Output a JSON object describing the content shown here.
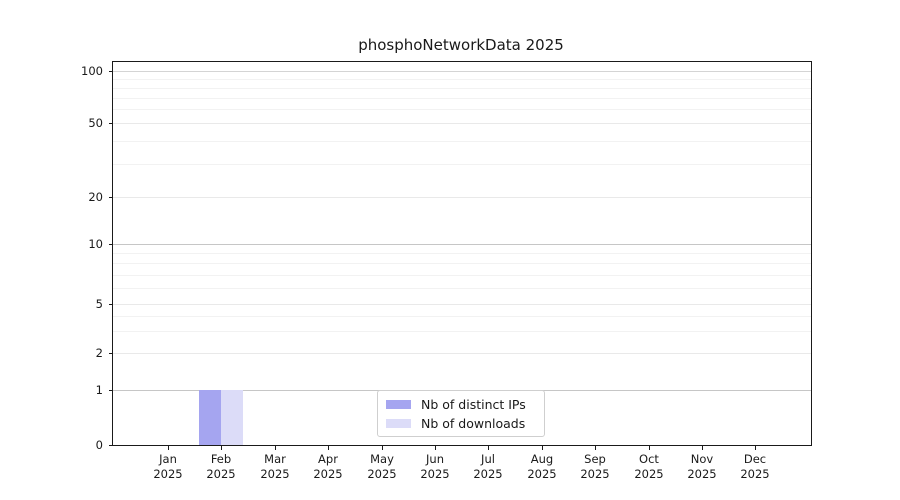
{
  "chart_data": {
    "type": "bar",
    "title": "phosphoNetworkData 2025",
    "categories": [
      "Jan 2025",
      "Feb 2025",
      "Mar 2025",
      "Apr 2025",
      "May 2025",
      "Jun 2025",
      "Jul 2025",
      "Aug 2025",
      "Sep 2025",
      "Oct 2025",
      "Nov 2025",
      "Dec 2025"
    ],
    "series": [
      {
        "name": "Nb of distinct IPs",
        "color": "#a5a5f0",
        "values": [
          0,
          1,
          0,
          0,
          0,
          0,
          0,
          0,
          0,
          0,
          0,
          0
        ]
      },
      {
        "name": "Nb of downloads",
        "color": "#dcdcf8",
        "values": [
          0,
          1,
          0,
          0,
          0,
          0,
          0,
          0,
          0,
          0,
          0,
          0
        ]
      }
    ],
    "xlabel": "",
    "ylabel": "",
    "ylim": [
      0,
      100
    ],
    "y_scale": "log above 1, linear 0-1",
    "y_ticks": [
      0,
      1,
      2,
      5,
      10,
      20,
      50,
      100
    ],
    "y_minor_ticks": [
      3,
      4,
      6,
      7,
      8,
      9,
      30,
      40,
      60,
      70,
      80,
      90
    ],
    "grid": true,
    "legend_position": "bottom-center",
    "colors": {
      "strong_gridline": "#c6c6c6",
      "top_gridline": "#d4d4d4",
      "weak_gridline": "#e9e9e9",
      "minor_gridline": "#f2f2f2",
      "axis": "#1a1a1a"
    }
  }
}
